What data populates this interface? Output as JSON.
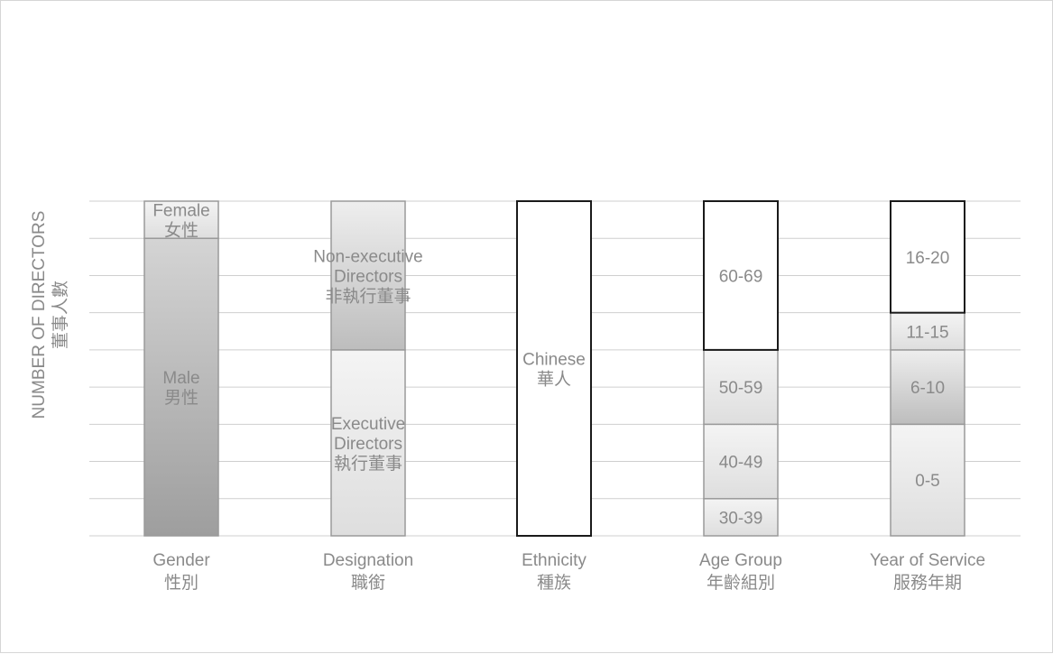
{
  "chart_data": {
    "type": "bar",
    "stacked": true,
    "ylabel": "NUMBER OF DIRECTORS",
    "ylabel_zh": "董事人數",
    "ylim": [
      0,
      9
    ],
    "grid": true,
    "categories": [
      {
        "name": "Gender",
        "name_zh": "性別"
      },
      {
        "name": "Designation",
        "name_zh": "職銜"
      },
      {
        "name": "Ethnicity",
        "name_zh": "種族"
      },
      {
        "name": "Age Group",
        "name_zh": "年齡組別"
      },
      {
        "name": "Year of Service",
        "name_zh": "服務年期"
      }
    ],
    "stacks": [
      {
        "category": "Gender",
        "segments": [
          {
            "lines": [
              "Male",
              "男性"
            ],
            "value": 8,
            "fill": "gender"
          },
          {
            "lines": [
              "Female",
              "女性"
            ],
            "value": 1,
            "fill": "light"
          }
        ]
      },
      {
        "category": "Designation",
        "segments": [
          {
            "lines": [
              "Executive",
              "Directors",
              "執行董事"
            ],
            "value": 5,
            "fill": "light"
          },
          {
            "lines": [
              "Non-executive",
              "Directors",
              "非執行董事"
            ],
            "value": 4,
            "fill": "mid"
          }
        ]
      },
      {
        "category": "Ethnicity",
        "segments": [
          {
            "lines": [
              "Chinese",
              "華人"
            ],
            "value": 9,
            "fill": "white"
          }
        ]
      },
      {
        "category": "Age Group",
        "segments": [
          {
            "lines": [
              "30-39"
            ],
            "value": 1,
            "fill": "light"
          },
          {
            "lines": [
              "40-49"
            ],
            "value": 2,
            "fill": "light"
          },
          {
            "lines": [
              "50-59"
            ],
            "value": 2,
            "fill": "light"
          },
          {
            "lines": [
              "60-69"
            ],
            "value": 4,
            "fill": "white"
          }
        ]
      },
      {
        "category": "Year of Service",
        "segments": [
          {
            "lines": [
              "0-5"
            ],
            "value": 3,
            "fill": "light"
          },
          {
            "lines": [
              "6-10"
            ],
            "value": 2,
            "fill": "mid"
          },
          {
            "lines": [
              "11-15"
            ],
            "value": 1,
            "fill": "light"
          },
          {
            "lines": [
              "16-20"
            ],
            "value": 3,
            "fill": "white"
          }
        ]
      }
    ],
    "colors": {
      "gridline": "#cfcfcf",
      "label": "#8a8a8a",
      "light_top": "#f4f4f4",
      "light_bottom": "#dedede",
      "mid_top": "#eeeeee",
      "mid_bottom": "#bdbdbd",
      "gender_top": "#d4d4d4",
      "gender_bottom": "#9e9e9e",
      "white": "#ffffff",
      "stroke_light": "#9a9a9a",
      "stroke_dark": "#1a1a1a"
    }
  }
}
